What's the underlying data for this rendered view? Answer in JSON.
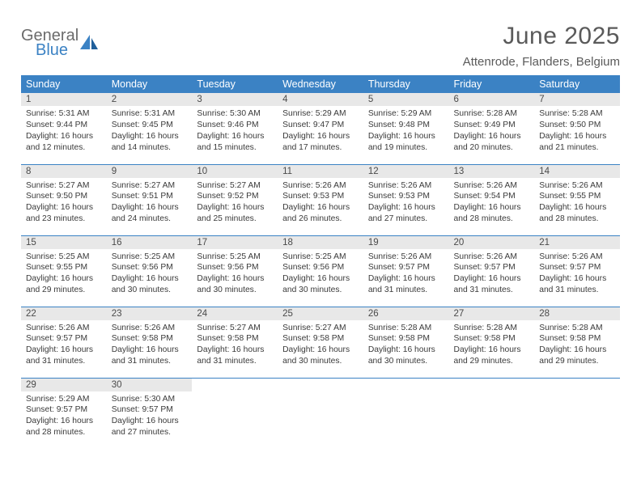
{
  "logo": {
    "text_top": "General",
    "text_bottom": "Blue"
  },
  "header": {
    "title": "June 2025",
    "location": "Attenrode, Flanders, Belgium"
  },
  "colors": {
    "header_bg": "#3b82c4",
    "divider": "#3b82c4",
    "daynum_bg": "#e8e8e8",
    "text": "#3a3a3a"
  },
  "weekdays": [
    "Sunday",
    "Monday",
    "Tuesday",
    "Wednesday",
    "Thursday",
    "Friday",
    "Saturday"
  ],
  "days": [
    {
      "n": 1,
      "sunrise": "5:31 AM",
      "sunset": "9:44 PM",
      "dl_h": 16,
      "dl_m": 12
    },
    {
      "n": 2,
      "sunrise": "5:31 AM",
      "sunset": "9:45 PM",
      "dl_h": 16,
      "dl_m": 14
    },
    {
      "n": 3,
      "sunrise": "5:30 AM",
      "sunset": "9:46 PM",
      "dl_h": 16,
      "dl_m": 15
    },
    {
      "n": 4,
      "sunrise": "5:29 AM",
      "sunset": "9:47 PM",
      "dl_h": 16,
      "dl_m": 17
    },
    {
      "n": 5,
      "sunrise": "5:29 AM",
      "sunset": "9:48 PM",
      "dl_h": 16,
      "dl_m": 19
    },
    {
      "n": 6,
      "sunrise": "5:28 AM",
      "sunset": "9:49 PM",
      "dl_h": 16,
      "dl_m": 20
    },
    {
      "n": 7,
      "sunrise": "5:28 AM",
      "sunset": "9:50 PM",
      "dl_h": 16,
      "dl_m": 21
    },
    {
      "n": 8,
      "sunrise": "5:27 AM",
      "sunset": "9:50 PM",
      "dl_h": 16,
      "dl_m": 23
    },
    {
      "n": 9,
      "sunrise": "5:27 AM",
      "sunset": "9:51 PM",
      "dl_h": 16,
      "dl_m": 24
    },
    {
      "n": 10,
      "sunrise": "5:27 AM",
      "sunset": "9:52 PM",
      "dl_h": 16,
      "dl_m": 25
    },
    {
      "n": 11,
      "sunrise": "5:26 AM",
      "sunset": "9:53 PM",
      "dl_h": 16,
      "dl_m": 26
    },
    {
      "n": 12,
      "sunrise": "5:26 AM",
      "sunset": "9:53 PM",
      "dl_h": 16,
      "dl_m": 27
    },
    {
      "n": 13,
      "sunrise": "5:26 AM",
      "sunset": "9:54 PM",
      "dl_h": 16,
      "dl_m": 28
    },
    {
      "n": 14,
      "sunrise": "5:26 AM",
      "sunset": "9:55 PM",
      "dl_h": 16,
      "dl_m": 28
    },
    {
      "n": 15,
      "sunrise": "5:25 AM",
      "sunset": "9:55 PM",
      "dl_h": 16,
      "dl_m": 29
    },
    {
      "n": 16,
      "sunrise": "5:25 AM",
      "sunset": "9:56 PM",
      "dl_h": 16,
      "dl_m": 30
    },
    {
      "n": 17,
      "sunrise": "5:25 AM",
      "sunset": "9:56 PM",
      "dl_h": 16,
      "dl_m": 30
    },
    {
      "n": 18,
      "sunrise": "5:25 AM",
      "sunset": "9:56 PM",
      "dl_h": 16,
      "dl_m": 30
    },
    {
      "n": 19,
      "sunrise": "5:26 AM",
      "sunset": "9:57 PM",
      "dl_h": 16,
      "dl_m": 31
    },
    {
      "n": 20,
      "sunrise": "5:26 AM",
      "sunset": "9:57 PM",
      "dl_h": 16,
      "dl_m": 31
    },
    {
      "n": 21,
      "sunrise": "5:26 AM",
      "sunset": "9:57 PM",
      "dl_h": 16,
      "dl_m": 31
    },
    {
      "n": 22,
      "sunrise": "5:26 AM",
      "sunset": "9:57 PM",
      "dl_h": 16,
      "dl_m": 31
    },
    {
      "n": 23,
      "sunrise": "5:26 AM",
      "sunset": "9:58 PM",
      "dl_h": 16,
      "dl_m": 31
    },
    {
      "n": 24,
      "sunrise": "5:27 AM",
      "sunset": "9:58 PM",
      "dl_h": 16,
      "dl_m": 31
    },
    {
      "n": 25,
      "sunrise": "5:27 AM",
      "sunset": "9:58 PM",
      "dl_h": 16,
      "dl_m": 30
    },
    {
      "n": 26,
      "sunrise": "5:28 AM",
      "sunset": "9:58 PM",
      "dl_h": 16,
      "dl_m": 30
    },
    {
      "n": 27,
      "sunrise": "5:28 AM",
      "sunset": "9:58 PM",
      "dl_h": 16,
      "dl_m": 29
    },
    {
      "n": 28,
      "sunrise": "5:28 AM",
      "sunset": "9:58 PM",
      "dl_h": 16,
      "dl_m": 29
    },
    {
      "n": 29,
      "sunrise": "5:29 AM",
      "sunset": "9:57 PM",
      "dl_h": 16,
      "dl_m": 28
    },
    {
      "n": 30,
      "sunrise": "5:30 AM",
      "sunset": "9:57 PM",
      "dl_h": 16,
      "dl_m": 27
    }
  ],
  "labels": {
    "sunrise": "Sunrise:",
    "sunset": "Sunset:",
    "daylight_prefix": "Daylight:",
    "hours_word": "hours",
    "and_word": "and",
    "minutes_word": "minutes."
  },
  "layout": {
    "start_weekday": 0,
    "rows": 5,
    "cols": 7
  }
}
